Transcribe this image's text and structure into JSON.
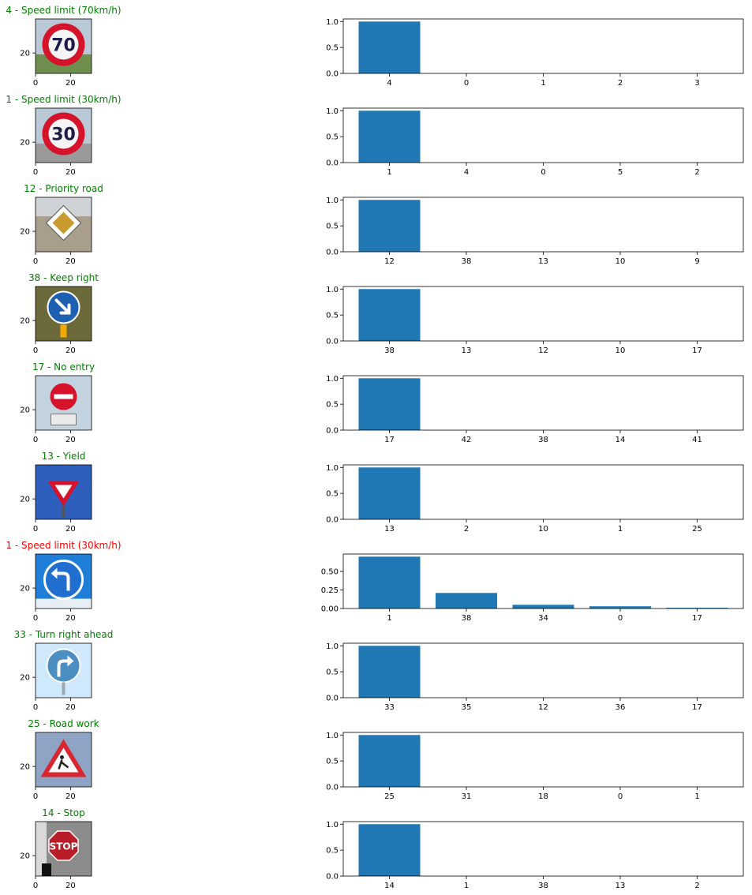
{
  "colors": {
    "bar": "#1f77b4",
    "correct_title": "#008000",
    "wrong_title": "#ff0000",
    "axis": "#000000"
  },
  "image_axes": {
    "xticks": [
      0,
      20
    ],
    "yticks": [
      20
    ],
    "xlim": [
      0,
      32
    ],
    "ylim": [
      0,
      32
    ]
  },
  "chart_data": [
    {
      "type": "bar",
      "title": "4 - Speed limit (70km/h)",
      "title_color": "green",
      "sign_icon": "speed-limit-70-sign-icon",
      "categories": [
        "4",
        "0",
        "1",
        "2",
        "3"
      ],
      "values": [
        1.0,
        0.0,
        0.0,
        0.0,
        0.0
      ],
      "ylim": [
        0,
        1.05
      ],
      "yticks": [
        "0.0",
        "0.5",
        "1.0"
      ],
      "xlabel": "",
      "ylabel": "",
      "grid": false
    },
    {
      "type": "bar",
      "title": "1 - Speed limit (30km/h)",
      "title_color": "green",
      "sign_icon": "speed-limit-30-sign-icon",
      "categories": [
        "1",
        "4",
        "0",
        "5",
        "2"
      ],
      "values": [
        1.0,
        0.0,
        0.0,
        0.0,
        0.0
      ],
      "ylim": [
        0,
        1.05
      ],
      "yticks": [
        "0.0",
        "0.5",
        "1.0"
      ],
      "xlabel": "",
      "ylabel": "",
      "grid": false
    },
    {
      "type": "bar",
      "title": "12 - Priority road",
      "title_color": "green",
      "sign_icon": "priority-road-sign-icon",
      "categories": [
        "12",
        "38",
        "13",
        "10",
        "9"
      ],
      "values": [
        1.0,
        0.0,
        0.0,
        0.0,
        0.0
      ],
      "ylim": [
        0,
        1.05
      ],
      "yticks": [
        "0.0",
        "0.5",
        "1.0"
      ],
      "xlabel": "",
      "ylabel": "",
      "grid": false
    },
    {
      "type": "bar",
      "title": "38 - Keep right",
      "title_color": "green",
      "sign_icon": "keep-right-sign-icon",
      "categories": [
        "38",
        "13",
        "12",
        "10",
        "17"
      ],
      "values": [
        1.0,
        0.0,
        0.0,
        0.0,
        0.0
      ],
      "ylim": [
        0,
        1.05
      ],
      "yticks": [
        "0.0",
        "0.5",
        "1.0"
      ],
      "xlabel": "",
      "ylabel": "",
      "grid": false
    },
    {
      "type": "bar",
      "title": "17 - No entry",
      "title_color": "green",
      "sign_icon": "no-entry-sign-icon",
      "categories": [
        "17",
        "42",
        "38",
        "14",
        "41"
      ],
      "values": [
        1.0,
        0.0,
        0.0,
        0.0,
        0.0
      ],
      "ylim": [
        0,
        1.05
      ],
      "yticks": [
        "0.0",
        "0.5",
        "1.0"
      ],
      "xlabel": "",
      "ylabel": "",
      "grid": false
    },
    {
      "type": "bar",
      "title": "13 - Yield",
      "title_color": "green",
      "sign_icon": "yield-sign-icon",
      "categories": [
        "13",
        "2",
        "10",
        "1",
        "25"
      ],
      "values": [
        1.0,
        0.0,
        0.0,
        0.0,
        0.0
      ],
      "ylim": [
        0,
        1.05
      ],
      "yticks": [
        "0.0",
        "0.5",
        "1.0"
      ],
      "xlabel": "",
      "ylabel": "",
      "grid": false
    },
    {
      "type": "bar",
      "title": "1 - Speed limit (30km/h)",
      "title_color": "red",
      "sign_icon": "turn-left-ahead-sign-icon",
      "categories": [
        "1",
        "38",
        "34",
        "0",
        "17"
      ],
      "values": [
        0.7,
        0.21,
        0.05,
        0.03,
        0.01
      ],
      "ylim": [
        0,
        0.735
      ],
      "yticks": [
        "0.00",
        "0.25",
        "0.50"
      ],
      "xlabel": "",
      "ylabel": "",
      "grid": false
    },
    {
      "type": "bar",
      "title": "33 - Turn right ahead",
      "title_color": "green",
      "sign_icon": "turn-right-ahead-sign-icon",
      "categories": [
        "33",
        "35",
        "12",
        "36",
        "17"
      ],
      "values": [
        1.0,
        0.0,
        0.0,
        0.0,
        0.0
      ],
      "ylim": [
        0,
        1.05
      ],
      "yticks": [
        "0.0",
        "0.5",
        "1.0"
      ],
      "xlabel": "",
      "ylabel": "",
      "grid": false
    },
    {
      "type": "bar",
      "title": "25 - Road work",
      "title_color": "green",
      "sign_icon": "road-work-sign-icon",
      "categories": [
        "25",
        "31",
        "18",
        "0",
        "1"
      ],
      "values": [
        1.0,
        0.0,
        0.0,
        0.0,
        0.0
      ],
      "ylim": [
        0,
        1.05
      ],
      "yticks": [
        "0.0",
        "0.5",
        "1.0"
      ],
      "xlabel": "",
      "ylabel": "",
      "grid": false
    },
    {
      "type": "bar",
      "title": "14 - Stop",
      "title_color": "green",
      "sign_icon": "stop-sign-icon",
      "categories": [
        "14",
        "1",
        "38",
        "13",
        "2"
      ],
      "values": [
        1.0,
        0.0,
        0.0,
        0.0,
        0.0
      ],
      "ylim": [
        0,
        1.05
      ],
      "yticks": [
        "0.0",
        "0.5",
        "1.0"
      ],
      "xlabel": "",
      "ylabel": "",
      "grid": false
    }
  ]
}
